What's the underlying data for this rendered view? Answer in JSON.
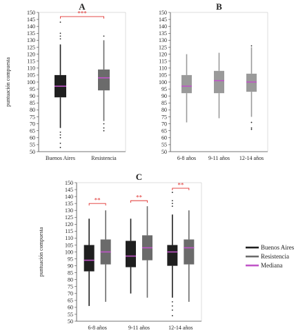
{
  "colors": {
    "buenos_aires": "#1f1f1f",
    "resistencia": "#6b6b6b",
    "light_grey": "#9a9a9a",
    "median": "#c055c8",
    "significance": "#e0312f",
    "axis": "#444444"
  },
  "legend": {
    "items": [
      {
        "label": "Buenos Aires",
        "color": "#1f1f1f"
      },
      {
        "label": "Resistencia",
        "color": "#6b6b6b"
      },
      {
        "label": "Mediana",
        "color": "#c055c8"
      }
    ]
  },
  "chart_data": [
    {
      "type": "box",
      "panel": "A",
      "ylabel": "puntuación compuesta",
      "ylim": [
        50,
        150
      ],
      "yticks": [
        50,
        55,
        60,
        65,
        70,
        75,
        80,
        85,
        90,
        95,
        100,
        105,
        110,
        115,
        120,
        125,
        130,
        135,
        140,
        145,
        150
      ],
      "categories": [
        "Buenos Aires",
        "Resistencia"
      ],
      "boxes": [
        {
          "category": "Buenos Aires",
          "color_key": "buenos_aires",
          "whisker_low": 67,
          "q1": 89,
          "median": 97,
          "q3": 105,
          "whisker_high": 127,
          "outliers": [
            143,
            135,
            133,
            131,
            64,
            62,
            60,
            56,
            53
          ]
        },
        {
          "category": "Resistencia",
          "color_key": "resistencia",
          "whisker_low": 72,
          "q1": 94,
          "median": 103,
          "q3": 109,
          "whisker_high": 130,
          "outliers": [
            133,
            70,
            67,
            65
          ]
        }
      ],
      "significance": [
        {
          "from": 0,
          "to": 1,
          "label": "***",
          "y": 147
        }
      ]
    },
    {
      "type": "box",
      "panel": "B",
      "ylabel": "",
      "ylim": [
        50,
        150
      ],
      "yticks": [
        50,
        55,
        60,
        65,
        70,
        75,
        80,
        85,
        90,
        95,
        100,
        105,
        110,
        115,
        120,
        125,
        130,
        135,
        140,
        145,
        150
      ],
      "categories": [
        "6-8 años",
        "9-11 años",
        "12-14 años"
      ],
      "boxes": [
        {
          "category": "6-8 años",
          "color_key": "light_grey",
          "whisker_low": 71,
          "q1": 92,
          "median": 97,
          "q3": 105,
          "whisker_high": 120,
          "outliers": []
        },
        {
          "category": "9-11 años",
          "color_key": "light_grey",
          "whisker_low": 74,
          "q1": 92,
          "median": 101,
          "q3": 108,
          "whisker_high": 121,
          "outliers": []
        },
        {
          "category": "12-14 años",
          "color_key": "light_grey",
          "whisker_low": 75,
          "q1": 93,
          "median": 100,
          "q3": 106,
          "whisker_high": 125,
          "outliers": [
            126,
            71,
            67,
            66
          ]
        }
      ],
      "significance": []
    },
    {
      "type": "box",
      "panel": "C",
      "ylabel": "puntuación compuesta",
      "ylim": [
        50,
        150
      ],
      "yticks": [
        50,
        55,
        60,
        65,
        70,
        75,
        80,
        85,
        90,
        95,
        100,
        105,
        110,
        115,
        120,
        125,
        130,
        135,
        140,
        145,
        150
      ],
      "categories": [
        "6-8 años",
        "9-11 años",
        "12-14 años"
      ],
      "series": [
        "Buenos Aires",
        "Resistencia"
      ],
      "boxes": [
        {
          "category": "6-8 años",
          "series": "Buenos Aires",
          "color_key": "buenos_aires",
          "whisker_low": 61,
          "q1": 86,
          "median": 94,
          "q3": 105,
          "whisker_high": 124,
          "outliers": []
        },
        {
          "category": "6-8 años",
          "series": "Resistencia",
          "color_key": "resistencia",
          "whisker_low": 64,
          "q1": 91,
          "median": 100,
          "q3": 109,
          "whisker_high": 130,
          "outliers": []
        },
        {
          "category": "9-11 años",
          "series": "Buenos Aires",
          "color_key": "buenos_aires",
          "whisker_low": 70,
          "q1": 89,
          "median": 97,
          "q3": 108,
          "whisker_high": 124,
          "outliers": []
        },
        {
          "category": "9-11 años",
          "series": "Resistencia",
          "color_key": "resistencia",
          "whisker_low": 67,
          "q1": 94,
          "median": 103,
          "q3": 112,
          "whisker_high": 133,
          "outliers": []
        },
        {
          "category": "12-14 años",
          "series": "Buenos Aires",
          "color_key": "buenos_aires",
          "whisker_low": 67,
          "q1": 90,
          "median": 100,
          "q3": 105,
          "whisker_high": 127,
          "outliers": [
            143,
            137,
            135,
            133,
            64,
            61,
            58,
            54
          ]
        },
        {
          "category": "12-14 años",
          "series": "Resistencia",
          "color_key": "resistencia",
          "whisker_low": 64,
          "q1": 91,
          "median": 103,
          "q3": 109,
          "whisker_high": 130,
          "outliers": []
        }
      ],
      "significance": [
        {
          "category_index": 0,
          "label": "**",
          "y": 135
        },
        {
          "category_index": 1,
          "label": "**",
          "y": 137
        },
        {
          "category_index": 2,
          "label": "**",
          "y": 146
        }
      ]
    }
  ]
}
